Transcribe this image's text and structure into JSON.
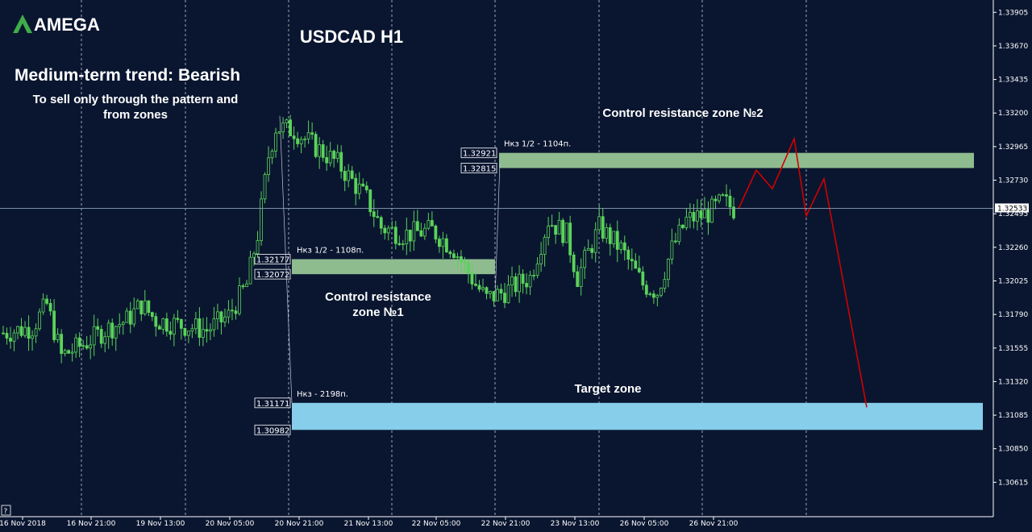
{
  "brand": {
    "name": "AMEGA",
    "accent": "#3fae49"
  },
  "chart_data": {
    "type": "candlestick",
    "title": "USDCAD H1",
    "trend_heading": "Medium-term trend: Bearish",
    "advice_lines": [
      "To sell only through the pattern and",
      "from zones"
    ],
    "colors": {
      "background": "#0a1630",
      "candle": "#5bd35a",
      "forecast": "#d00000",
      "resistance_zone": "#8fbc8f",
      "target_zone": "#87ceeb",
      "axis_text": "#ffffff"
    },
    "y_axis": {
      "ylim": [
        1.3038,
        1.3398
      ],
      "ticks": [
        "1.33905",
        "1.33670",
        "1.33435",
        "1.33200",
        "1.32965",
        "1.32730",
        "1.32495",
        "1.32260",
        "1.32025",
        "1.31790",
        "1.31555",
        "1.31320",
        "1.31085",
        "1.30850",
        "1.30615"
      ],
      "current_price": "1.32533"
    },
    "x_axis": {
      "ticks": [
        "16 Nov 2018",
        "16 Nov 21:00",
        "19 Nov 13:00",
        "20 Nov 05:00",
        "20 Nov 21:00",
        "21 Nov 13:00",
        "22 Nov 05:00",
        "22 Nov 21:00",
        "23 Nov 13:00",
        "26 Nov 05:00",
        "26 Nov 21:00"
      ],
      "grid": "vertical dashed at each tick"
    },
    "series_anchors": [
      {
        "bar": 0,
        "close": 1.3166
      },
      {
        "bar": 8,
        "close": 1.317
      },
      {
        "bar": 12,
        "close": 1.3186
      },
      {
        "bar": 16,
        "close": 1.315
      },
      {
        "bar": 22,
        "close": 1.3158
      },
      {
        "bar": 28,
        "close": 1.3168
      },
      {
        "bar": 34,
        "close": 1.3175
      },
      {
        "bar": 38,
        "close": 1.3186
      },
      {
        "bar": 42,
        "close": 1.3175
      },
      {
        "bar": 48,
        "close": 1.3172
      },
      {
        "bar": 56,
        "close": 1.3168
      },
      {
        "bar": 62,
        "close": 1.3178
      },
      {
        "bar": 67,
        "close": 1.32
      },
      {
        "bar": 70,
        "close": 1.3235
      },
      {
        "bar": 73,
        "close": 1.329
      },
      {
        "bar": 75,
        "close": 1.331
      },
      {
        "bar": 80,
        "close": 1.3308
      },
      {
        "bar": 85,
        "close": 1.3298
      },
      {
        "bar": 92,
        "close": 1.3285
      },
      {
        "bar": 100,
        "close": 1.326
      },
      {
        "bar": 104,
        "close": 1.324
      },
      {
        "bar": 110,
        "close": 1.3235
      },
      {
        "bar": 118,
        "close": 1.3238
      },
      {
        "bar": 124,
        "close": 1.3225
      },
      {
        "bar": 130,
        "close": 1.32
      },
      {
        "bar": 133,
        "close": 1.319
      },
      {
        "bar": 138,
        "close": 1.3195
      },
      {
        "bar": 145,
        "close": 1.3205
      },
      {
        "bar": 150,
        "close": 1.3245
      },
      {
        "bar": 155,
        "close": 1.3235
      },
      {
        "bar": 158,
        "close": 1.3205
      },
      {
        "bar": 164,
        "close": 1.324
      },
      {
        "bar": 170,
        "close": 1.3225
      },
      {
        "bar": 176,
        "close": 1.32
      },
      {
        "bar": 180,
        "close": 1.3195
      },
      {
        "bar": 184,
        "close": 1.3225
      },
      {
        "bar": 188,
        "close": 1.3245
      },
      {
        "bar": 194,
        "close": 1.325
      },
      {
        "bar": 198,
        "close": 1.3258
      },
      {
        "bar": 201,
        "close": 1.3253
      }
    ],
    "zones": [
      {
        "name": "Control resistance zone №1",
        "label_lines": [
          "Control resistance",
          "zone №1"
        ],
        "top": "1.32177",
        "bottom": "1.32072",
        "top_value": 1.32177,
        "bottom_value": 1.32072,
        "note": "Нкз 1/2 - 1108п.",
        "color": "#8fbc8f"
      },
      {
        "name": "Control resistance zone №2",
        "label_lines": [
          "Control resistance zone №2"
        ],
        "top": "1.32921",
        "bottom": "1.32815",
        "top_value": 1.32921,
        "bottom_value": 1.32815,
        "note": "Нкз 1/2 - 1104п.",
        "color": "#8fbc8f"
      },
      {
        "name": "Target zone",
        "label_lines": [
          "Target zone"
        ],
        "top": "1.31171",
        "bottom": "1.30982",
        "top_value": 1.31171,
        "bottom_value": 1.30982,
        "note": "Нкз - 2198п.",
        "color": "#87ceeb"
      }
    ],
    "forecast_path": [
      {
        "step": 0,
        "price": 1.3253
      },
      {
        "step": 1,
        "price": 1.328
      },
      {
        "step": 2,
        "price": 1.3267
      },
      {
        "step": 3,
        "price": 1.3302
      },
      {
        "step": 4,
        "price": 1.3248
      },
      {
        "step": 5,
        "price": 1.3274
      },
      {
        "step": 6,
        "price": 1.3114
      }
    ]
  }
}
